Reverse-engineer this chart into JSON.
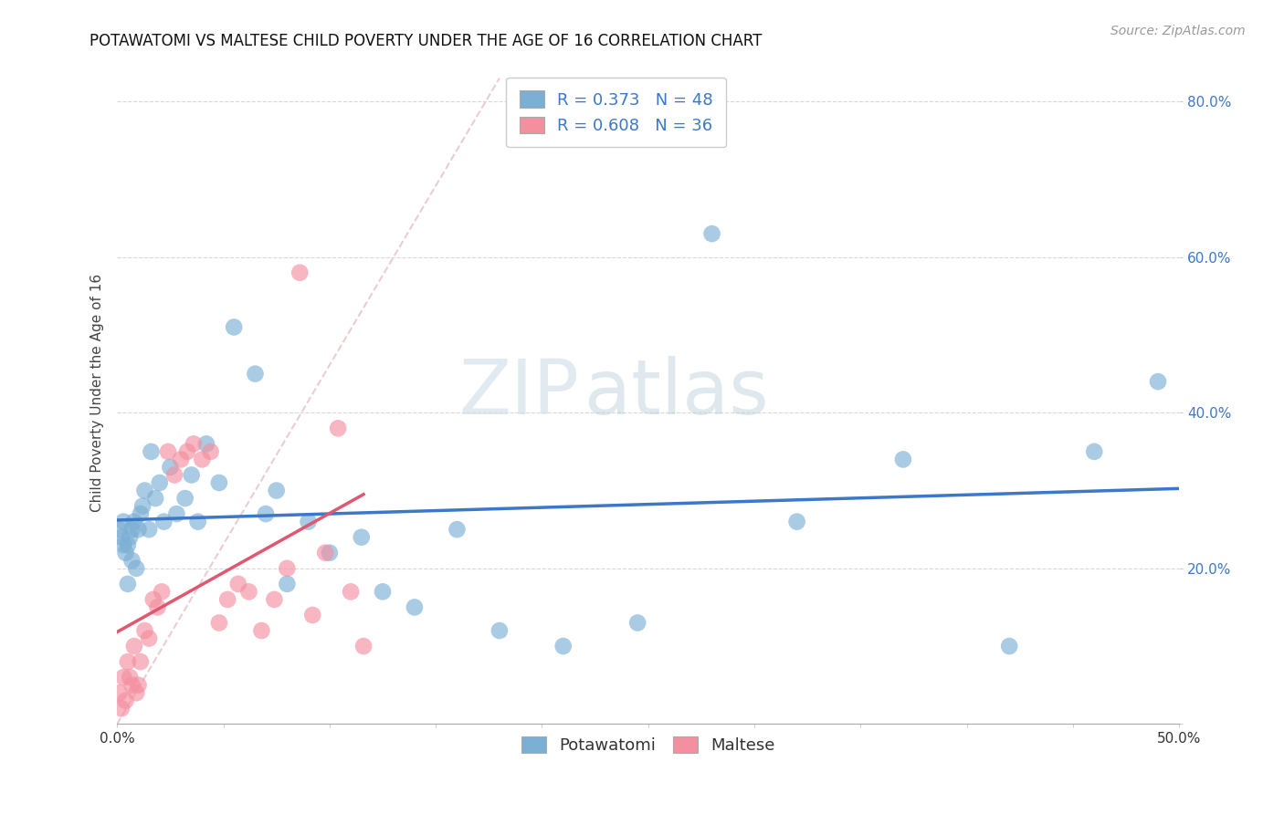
{
  "title": "POTAWATOMI VS MALTESE CHILD POVERTY UNDER THE AGE OF 16 CORRELATION CHART",
  "source": "Source: ZipAtlas.com",
  "ylabel": "Child Poverty Under the Age of 16",
  "xlim": [
    0,
    0.5
  ],
  "ylim": [
    0,
    0.85
  ],
  "xtick_positions": [
    0.0,
    0.05,
    0.1,
    0.15,
    0.2,
    0.25,
    0.3,
    0.35,
    0.4,
    0.45,
    0.5
  ],
  "ytick_positions": [
    0.0,
    0.2,
    0.4,
    0.6,
    0.8
  ],
  "yticklabels_right": [
    "",
    "20.0%",
    "40.0%",
    "60.0%",
    "80.0%"
  ],
  "watermark_zip": "ZIP",
  "watermark_atlas": "atlas",
  "potawatomi_x": [
    0.001,
    0.002,
    0.003,
    0.003,
    0.004,
    0.005,
    0.005,
    0.006,
    0.007,
    0.007,
    0.008,
    0.009,
    0.01,
    0.011,
    0.012,
    0.013,
    0.015,
    0.016,
    0.018,
    0.02,
    0.022,
    0.025,
    0.028,
    0.032,
    0.035,
    0.038,
    0.042,
    0.048,
    0.055,
    0.065,
    0.07,
    0.075,
    0.08,
    0.09,
    0.1,
    0.115,
    0.125,
    0.14,
    0.16,
    0.18,
    0.21,
    0.245,
    0.28,
    0.32,
    0.37,
    0.42,
    0.46,
    0.49
  ],
  "potawatomi_y": [
    0.25,
    0.24,
    0.23,
    0.26,
    0.22,
    0.23,
    0.18,
    0.24,
    0.25,
    0.21,
    0.26,
    0.2,
    0.25,
    0.27,
    0.28,
    0.3,
    0.25,
    0.35,
    0.29,
    0.31,
    0.26,
    0.33,
    0.27,
    0.29,
    0.32,
    0.26,
    0.36,
    0.31,
    0.51,
    0.45,
    0.27,
    0.3,
    0.18,
    0.26,
    0.22,
    0.24,
    0.17,
    0.15,
    0.25,
    0.12,
    0.1,
    0.13,
    0.63,
    0.26,
    0.34,
    0.1,
    0.35,
    0.44
  ],
  "maltese_x": [
    0.001,
    0.002,
    0.003,
    0.004,
    0.005,
    0.006,
    0.007,
    0.008,
    0.009,
    0.01,
    0.011,
    0.013,
    0.015,
    0.017,
    0.019,
    0.021,
    0.024,
    0.027,
    0.03,
    0.033,
    0.036,
    0.04,
    0.044,
    0.048,
    0.052,
    0.057,
    0.062,
    0.068,
    0.074,
    0.08,
    0.086,
    0.092,
    0.098,
    0.104,
    0.11,
    0.116
  ],
  "maltese_y": [
    0.04,
    0.02,
    0.06,
    0.03,
    0.08,
    0.06,
    0.05,
    0.1,
    0.04,
    0.05,
    0.08,
    0.12,
    0.11,
    0.16,
    0.15,
    0.17,
    0.35,
    0.32,
    0.34,
    0.35,
    0.36,
    0.34,
    0.35,
    0.13,
    0.16,
    0.18,
    0.17,
    0.12,
    0.16,
    0.2,
    0.58,
    0.14,
    0.22,
    0.38,
    0.17,
    0.1
  ],
  "potawatomi_color": "#7bafd4",
  "maltese_color": "#f48fa0",
  "potawatomi_line_color": "#3c78c8",
  "maltese_line_color": "#e05870",
  "diagonal_color": "#e8c8cc",
  "background_color": "#ffffff",
  "grid_color": "#d8d8d8",
  "title_fontsize": 12,
  "axis_label_fontsize": 11,
  "tick_fontsize": 11,
  "legend_fontsize": 13,
  "source_fontsize": 10,
  "R_potawatomi": 0.373,
  "N_potawatomi": 48,
  "R_maltese": 0.608,
  "N_maltese": 36
}
